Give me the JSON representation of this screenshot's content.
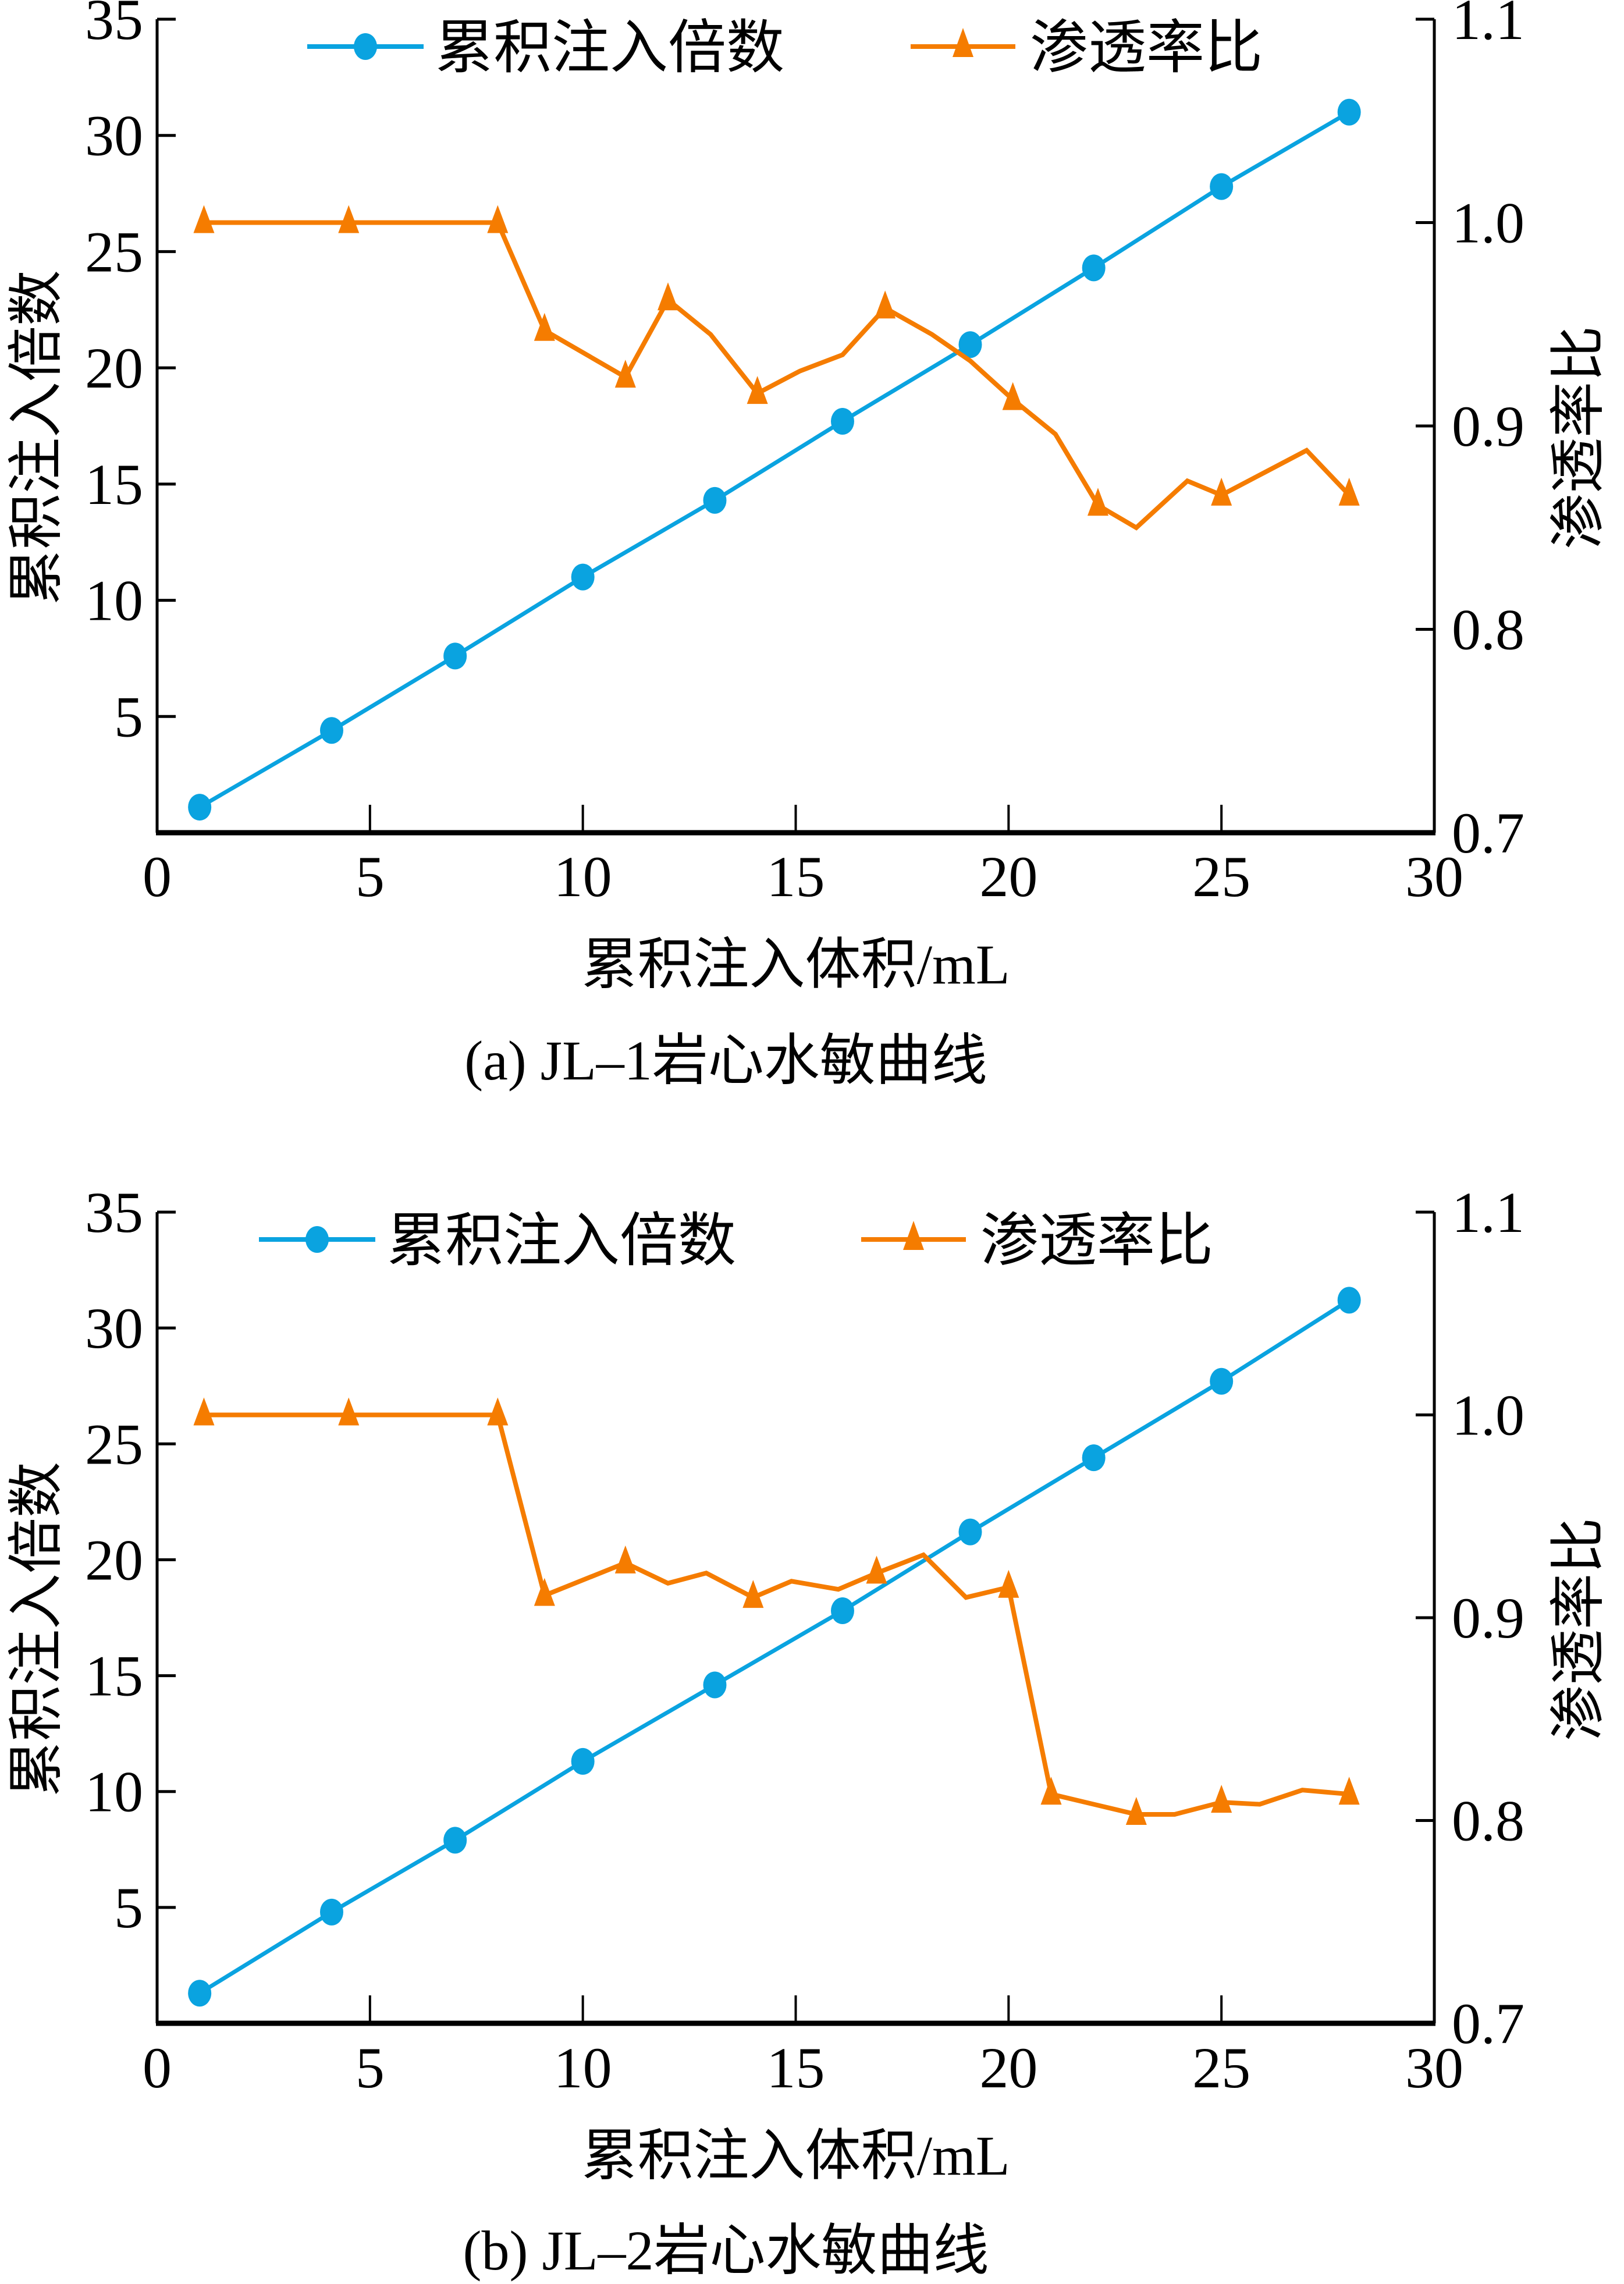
{
  "colors": {
    "blue": "#0aa3e0",
    "orange": "#f57c00",
    "axis": "#000000"
  },
  "chart_data": [
    {
      "type": "line",
      "caption": "(a) JL–1岩心水敏曲线",
      "xlabel": "累积注入体积/mL",
      "ylabel": "累积注入倍数",
      "y2label": "渗透率比",
      "xlim": [
        0,
        30
      ],
      "ylim": [
        0,
        35
      ],
      "y2lim": [
        0.7,
        1.1
      ],
      "xticks": [
        "0",
        "5",
        "10",
        "15",
        "20",
        "25",
        "30"
      ],
      "yticks": [
        "5",
        "10",
        "15",
        "20",
        "25",
        "30",
        "35"
      ],
      "y2ticks": [
        "0.7",
        "0.8",
        "0.9",
        "1.0",
        "1.1"
      ],
      "legend": {
        "placement": "top",
        "entries": [
          "累积注入倍数",
          "渗透率比"
        ]
      },
      "grid": false,
      "series": [
        {
          "name": "累积注入倍数",
          "axis": "left",
          "marker": "circle",
          "x": [
            1.0,
            4.1,
            7.0,
            10.0,
            13.1,
            16.1,
            19.1,
            22.0,
            25.0,
            28.0
          ],
          "y": [
            1.1,
            4.4,
            7.6,
            11.0,
            14.3,
            17.7,
            21.0,
            24.3,
            27.8,
            31.0
          ],
          "marker_idx": [
            0,
            1,
            2,
            3,
            4,
            5,
            6,
            7,
            8,
            9
          ]
        },
        {
          "name": "渗透率比",
          "axis": "right",
          "marker": "triangle",
          "x": [
            1.1,
            4.5,
            8.0,
            9.1,
            11.0,
            12.0,
            13.0,
            14.1,
            15.1,
            16.1,
            17.1,
            18.2,
            19.1,
            20.1,
            21.1,
            22.1,
            23.0,
            24.2,
            25.0,
            26.0,
            27.0,
            28.0
          ],
          "y": [
            1.0,
            1.0,
            1.0,
            0.947,
            0.924,
            0.962,
            0.945,
            0.916,
            0.927,
            0.935,
            0.958,
            0.945,
            0.932,
            0.913,
            0.896,
            0.861,
            0.85,
            0.873,
            0.866,
            0.877,
            0.888,
            0.866
          ],
          "marker_idx": [
            0,
            1,
            2,
            3,
            4,
            5,
            7,
            10,
            13,
            15,
            18,
            21
          ]
        }
      ]
    },
    {
      "type": "line",
      "caption": "(b) JL–2岩心水敏曲线",
      "xlabel": "累积注入体积/mL",
      "ylabel": "累积注入倍数",
      "y2label": "渗透率比",
      "xlim": [
        0,
        30
      ],
      "ylim": [
        0,
        35
      ],
      "y2lim": [
        0.7,
        1.1
      ],
      "xticks": [
        "0",
        "5",
        "10",
        "15",
        "20",
        "25",
        "30"
      ],
      "yticks": [
        "5",
        "10",
        "15",
        "20",
        "25",
        "30",
        "35"
      ],
      "y2ticks": [
        "0.7",
        "0.8",
        "0.9",
        "1.0",
        "1.1"
      ],
      "legend": {
        "placement": "top",
        "entries": [
          "累积注入倍数",
          "渗透率比"
        ]
      },
      "grid": false,
      "series": [
        {
          "name": "累积注入倍数",
          "axis": "left",
          "marker": "circle",
          "x": [
            1.0,
            4.1,
            7.0,
            10.0,
            13.1,
            16.1,
            19.1,
            22.0,
            25.0,
            28.0
          ],
          "y": [
            1.3,
            4.8,
            7.9,
            11.3,
            14.6,
            17.8,
            21.2,
            24.4,
            27.7,
            31.2
          ],
          "marker_idx": [
            0,
            1,
            2,
            3,
            4,
            5,
            6,
            7,
            8,
            9
          ]
        },
        {
          "name": "渗透率比",
          "axis": "right",
          "marker": "triangle",
          "x": [
            1.1,
            4.5,
            8.0,
            9.1,
            11.0,
            12.0,
            12.9,
            14.0,
            14.9,
            16.0,
            16.9,
            18.0,
            19.0,
            20.0,
            21.0,
            22.0,
            23.0,
            23.9,
            25.0,
            25.9,
            26.9,
            28.0
          ],
          "y": [
            1.0,
            1.0,
            1.0,
            0.911,
            0.927,
            0.917,
            0.922,
            0.91,
            0.918,
            0.914,
            0.922,
            0.931,
            0.91,
            0.915,
            0.813,
            0.808,
            0.803,
            0.803,
            0.809,
            0.808,
            0.815,
            0.813
          ],
          "marker_idx": [
            0,
            1,
            2,
            3,
            4,
            7,
            10,
            13,
            14,
            16,
            18,
            21
          ]
        }
      ]
    }
  ]
}
